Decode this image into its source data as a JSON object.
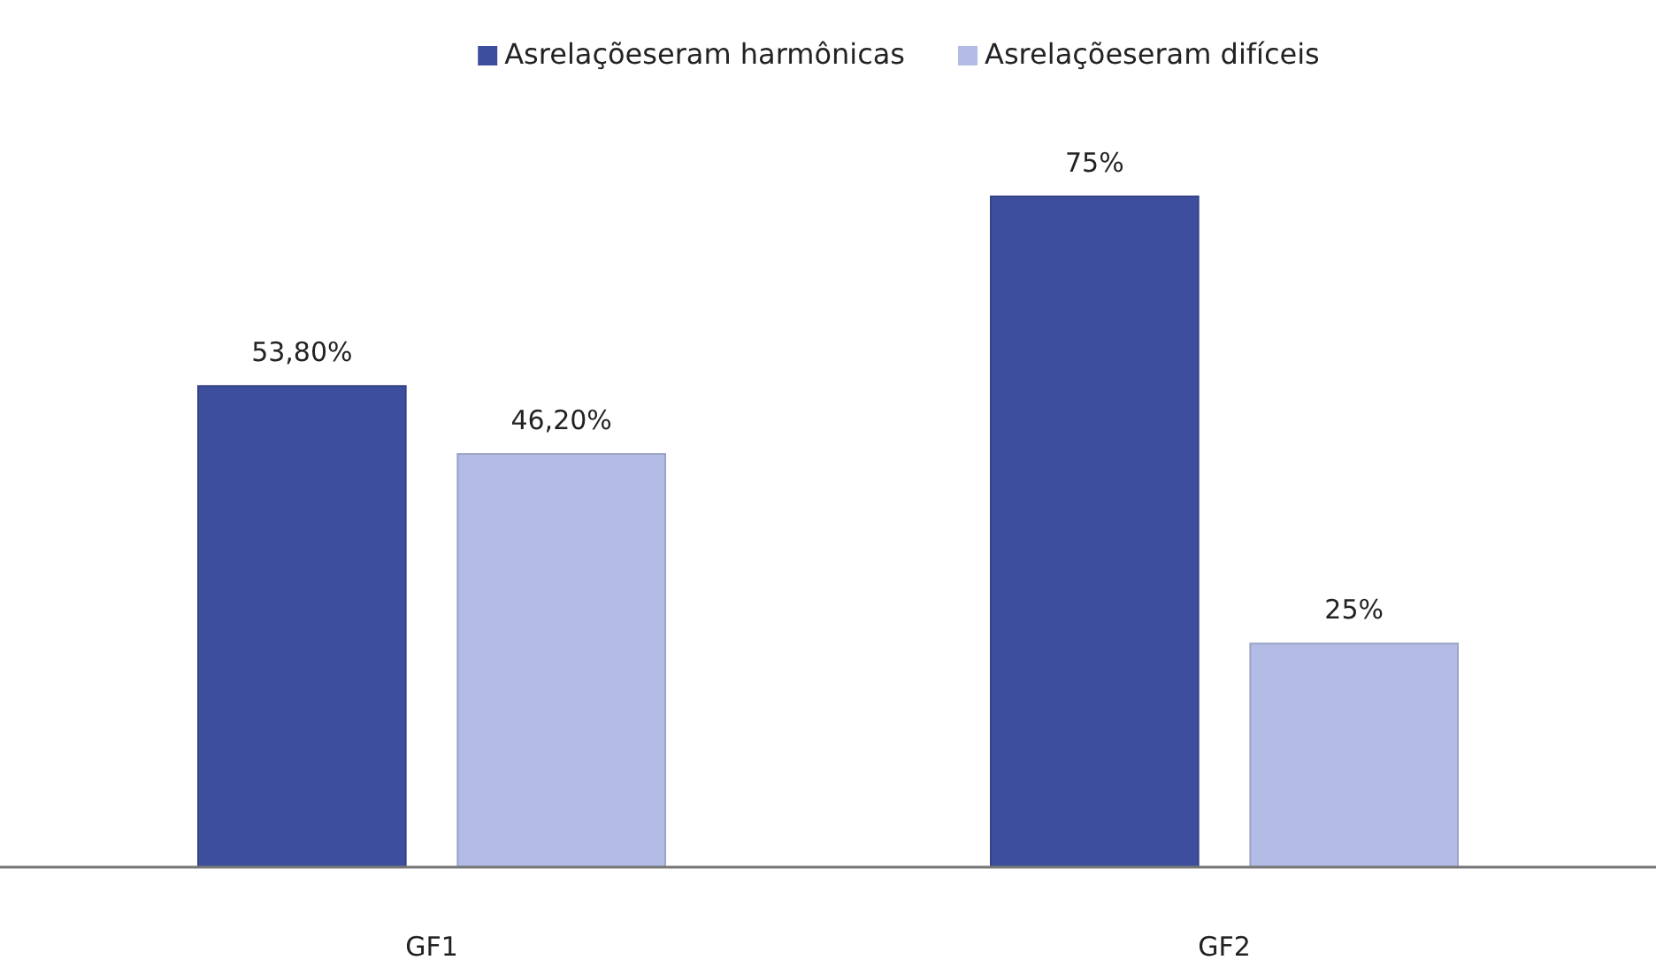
{
  "chart_data": {
    "type": "bar",
    "categories": [
      "GF1",
      "GF2"
    ],
    "series": [
      {
        "name": "Asrelaçõeseram harmônicas",
        "color": "#3d4f9c",
        "values": [
          53.8,
          75
        ],
        "value_labels": [
          "53,80%",
          "75%"
        ]
      },
      {
        "name": "Asrelaçõeseram difíceis",
        "color": "#b3bce4",
        "values": [
          46.2,
          25
        ],
        "value_labels": [
          "46,20%",
          "25%"
        ]
      }
    ],
    "legend": "top"
  }
}
